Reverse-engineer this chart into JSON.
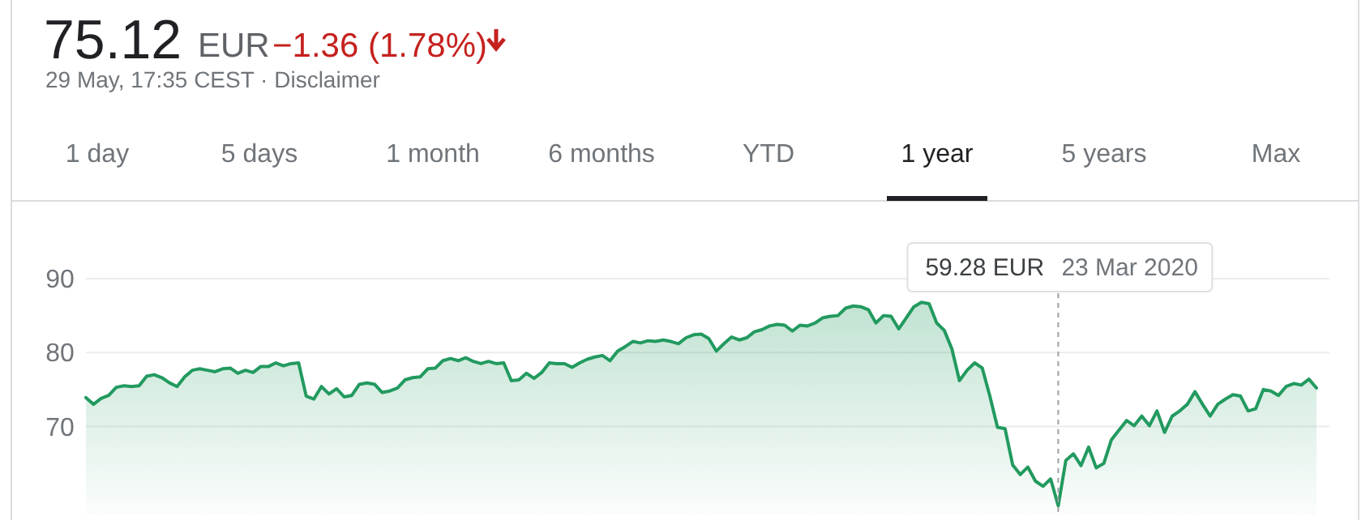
{
  "chart_data": {
    "type": "area",
    "title": "75.12",
    "subtitle": "29 May, 17:35 CEST · Disclaimer",
    "annotations": [
      "EUR",
      "−1.36 (1.78%)",
      "1 day",
      "5 days",
      "1 month",
      "6 months",
      "YTD",
      "1 year",
      "5 years",
      "Max",
      "59.28 EUR",
      "23 Mar 2020"
    ],
    "categories": [
      null,
      null,
      null,
      null,
      null,
      null,
      null,
      null,
      null,
      null,
      null,
      null,
      null,
      null,
      null,
      null,
      null,
      null,
      null,
      null,
      null,
      null,
      null,
      null,
      null,
      null,
      null,
      null,
      null,
      null,
      null,
      null,
      null,
      null,
      null,
      null,
      null,
      null,
      null,
      null,
      null,
      null,
      null,
      null,
      null,
      null,
      null,
      null,
      null,
      null,
      null,
      null,
      null,
      null,
      null,
      null,
      null,
      null,
      null,
      null,
      null,
      null,
      null,
      null,
      null,
      null,
      null,
      null,
      null,
      null,
      null,
      null,
      null,
      null,
      null,
      null,
      null,
      null,
      null,
      null,
      null,
      null,
      null,
      null,
      null,
      null,
      null,
      null,
      null,
      null,
      null,
      null,
      null,
      null,
      null,
      null,
      null,
      null,
      null,
      null,
      null,
      null,
      null,
      null,
      null,
      null,
      null,
      null,
      null,
      null,
      null,
      null,
      null,
      null,
      null,
      null,
      null,
      null,
      null,
      null,
      null,
      null,
      null,
      null,
      null,
      null,
      null,
      null,
      null,
      null,
      null,
      null,
      null,
      null,
      null,
      null,
      null,
      null,
      null,
      null,
      null,
      null,
      null,
      null,
      null,
      null,
      null,
      null,
      null,
      null,
      null,
      null,
      null,
      null,
      null,
      null,
      null,
      null,
      null,
      null,
      null,
      null,
      null
    ],
    "values": [
      73.9,
      73.0,
      73.8,
      74.2,
      75.3,
      75.5,
      75.4,
      75.5,
      76.8,
      77.0,
      76.6,
      75.9,
      75.4,
      76.7,
      77.6,
      77.8,
      77.6,
      77.4,
      77.8,
      77.9,
      77.2,
      77.6,
      77.3,
      78.1,
      78.1,
      78.6,
      78.2,
      78.5,
      78.6,
      74.1,
      73.7,
      75.4,
      74.4,
      75.1,
      74.0,
      74.2,
      75.7,
      75.9,
      75.7,
      74.6,
      74.8,
      75.2,
      76.3,
      76.6,
      76.7,
      77.8,
      77.9,
      78.9,
      79.2,
      78.9,
      79.3,
      78.8,
      78.5,
      78.8,
      78.5,
      78.6,
      76.2,
      76.3,
      77.2,
      76.5,
      77.3,
      78.6,
      78.5,
      78.5,
      78.0,
      78.6,
      79.1,
      79.4,
      79.6,
      78.9,
      80.2,
      80.8,
      81.5,
      81.3,
      81.6,
      81.5,
      81.7,
      81.5,
      81.2,
      82.0,
      82.4,
      82.5,
      81.9,
      80.2,
      81.2,
      82.1,
      81.7,
      82.0,
      82.8,
      83.1,
      83.6,
      83.8,
      83.7,
      82.9,
      83.7,
      83.6,
      84.0,
      84.7,
      84.9,
      85.0,
      86.0,
      86.3,
      86.2,
      85.8,
      84.0,
      85.0,
      84.9,
      83.2,
      84.7,
      86.2,
      86.8,
      86.6,
      84.0,
      83.0,
      80.5,
      76.2,
      77.6,
      78.6,
      77.9,
      74.1,
      69.9,
      69.7,
      64.8,
      63.5,
      64.5,
      62.6,
      61.9,
      62.9,
      59.28,
      65.4,
      66.3,
      64.7,
      67.2,
      64.4,
      65.0,
      68.2,
      69.5,
      70.8,
      70.1,
      71.4,
      70.1,
      72.1,
      69.2,
      71.4,
      72.1,
      73.0,
      74.7,
      73.0,
      71.4,
      73.0,
      73.7,
      74.3,
      74.1,
      72.1,
      72.4,
      75.0,
      74.8,
      74.2,
      75.4,
      75.8,
      75.6,
      76.4,
      75.2
    ],
    "color": "#229a5f",
    "ylim": [
      58,
      90
    ],
    "yticks": [
      70,
      80,
      90
    ],
    "grid": "y",
    "tick_labels": "y"
  }
}
